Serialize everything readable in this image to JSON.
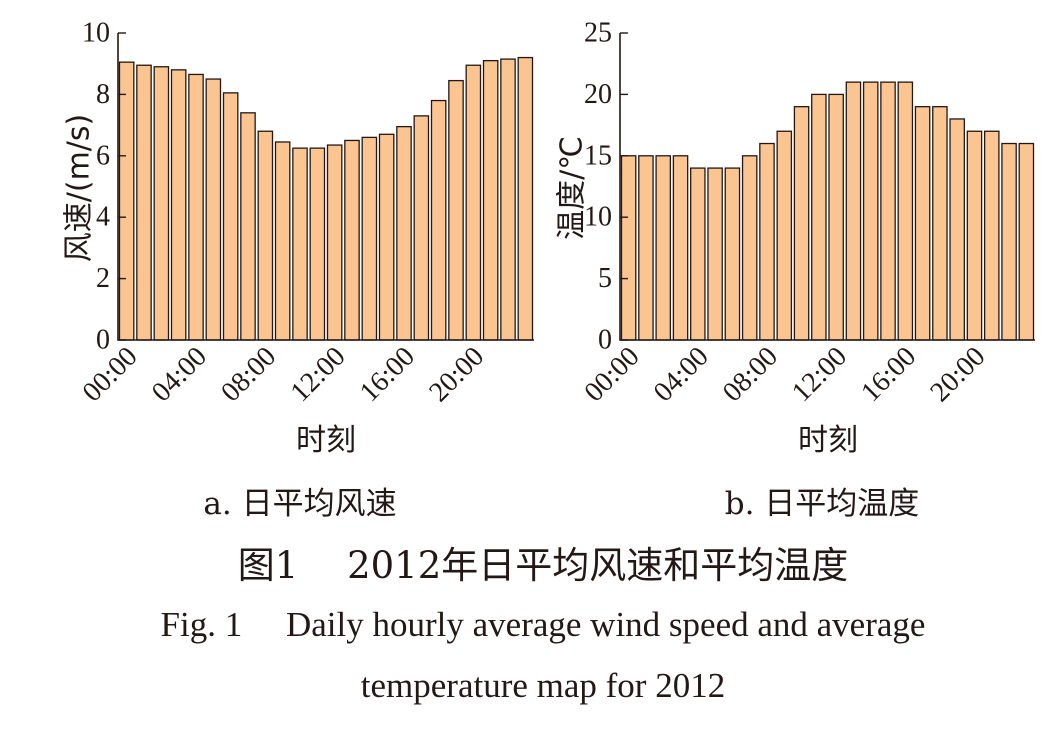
{
  "chart_data": [
    {
      "type": "bar",
      "subtitle": "a. 日平均风速",
      "xlabel": "时刻",
      "ylabel": "风速/(m/s)",
      "ylim": [
        0,
        10
      ],
      "yticks": [
        "0",
        "2",
        "4",
        "6",
        "8",
        "10"
      ],
      "xtick_labels": [
        "00:00",
        "04:00",
        "08:00",
        "12:00",
        "16:00",
        "20:00"
      ],
      "categories": [
        "00:00",
        "01:00",
        "02:00",
        "03:00",
        "04:00",
        "05:00",
        "06:00",
        "07:00",
        "08:00",
        "09:00",
        "10:00",
        "11:00",
        "12:00",
        "13:00",
        "14:00",
        "15:00",
        "16:00",
        "17:00",
        "18:00",
        "19:00",
        "20:00",
        "21:00",
        "22:00",
        "23:00"
      ],
      "values": [
        9.05,
        8.95,
        8.9,
        8.8,
        8.65,
        8.5,
        8.05,
        7.4,
        6.8,
        6.45,
        6.25,
        6.25,
        6.35,
        6.5,
        6.6,
        6.7,
        6.95,
        7.3,
        7.8,
        8.45,
        8.95,
        9.1,
        9.15,
        9.2
      ],
      "grid": false,
      "bar_color": "#fac590"
    },
    {
      "type": "bar",
      "subtitle": "b. 日平均温度",
      "xlabel": "时刻",
      "ylabel": "温度/℃",
      "ylim": [
        0,
        25
      ],
      "yticks": [
        "0",
        "5",
        "10",
        "15",
        "20",
        "25"
      ],
      "xtick_labels": [
        "00:00",
        "04:00",
        "08:00",
        "12:00",
        "16:00",
        "20:00"
      ],
      "categories": [
        "00:00",
        "01:00",
        "02:00",
        "03:00",
        "04:00",
        "05:00",
        "06:00",
        "07:00",
        "08:00",
        "09:00",
        "10:00",
        "11:00",
        "12:00",
        "13:00",
        "14:00",
        "15:00",
        "16:00",
        "17:00",
        "18:00",
        "19:00",
        "20:00",
        "21:00",
        "22:00",
        "23:00"
      ],
      "values": [
        15,
        15,
        15,
        15,
        14,
        14,
        14,
        15,
        16,
        17,
        19,
        20,
        20,
        21,
        21,
        21,
        21,
        19,
        19,
        18,
        17,
        17,
        16,
        16
      ],
      "grid": false,
      "bar_color": "#fac590"
    }
  ],
  "caption": {
    "cn": "图1　 2012年日平均风速和平均温度",
    "en_line1": "Fig. 1　 Daily hourly average wind speed and average",
    "en_line2": "temperature map for 2012"
  }
}
